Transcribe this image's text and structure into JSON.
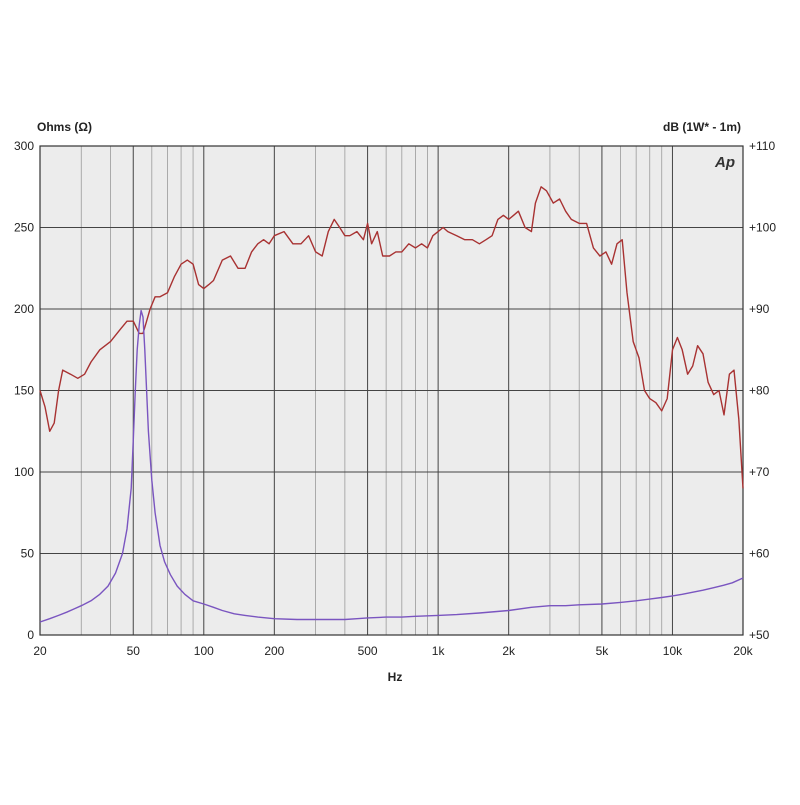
{
  "chart_data": {
    "type": "line",
    "title": "",
    "brand_mark": "Ap",
    "xlabel": "Hz",
    "ylabel_left": "Ohms (Ω)",
    "ylabel_right": "dB (1W* - 1m)",
    "x_scale": "log",
    "xlim": [
      20,
      20000
    ],
    "ylim_left": [
      0,
      300
    ],
    "ylim_right": [
      50,
      110
    ],
    "grid": true,
    "x_ticks": [
      {
        "value": 20,
        "label": "20"
      },
      {
        "value": 50,
        "label": "50"
      },
      {
        "value": 100,
        "label": "100"
      },
      {
        "value": 200,
        "label": "200"
      },
      {
        "value": 500,
        "label": "500"
      },
      {
        "value": 1000,
        "label": "1k"
      },
      {
        "value": 2000,
        "label": "2k"
      },
      {
        "value": 5000,
        "label": "5k"
      },
      {
        "value": 10000,
        "label": "10k"
      },
      {
        "value": 20000,
        "label": "20k"
      }
    ],
    "y_ticks_left": [
      "0",
      "50",
      "100",
      "150",
      "200",
      "250",
      "300"
    ],
    "y_ticks_right": [
      "+50",
      "+60",
      "+70",
      "+80",
      "+90",
      "+100",
      "+110"
    ],
    "colors": {
      "frequency_response": "#a83232",
      "impedance": "#7a55c0",
      "plot_background": "#ececec",
      "grid_major": "#444444",
      "grid_minor": "#9a9a9a"
    },
    "series": [
      {
        "axis": "right",
        "color": "#a83232",
        "x": [
          20,
          21,
          22,
          23,
          24,
          25,
          27,
          29,
          31,
          33,
          36,
          40,
          44,
          47,
          50,
          53,
          55,
          57,
          59,
          62,
          65,
          70,
          75,
          80,
          85,
          90,
          95,
          100,
          105,
          110,
          120,
          130,
          140,
          150,
          160,
          170,
          180,
          190,
          200,
          220,
          240,
          260,
          280,
          300,
          320,
          340,
          360,
          380,
          400,
          420,
          450,
          480,
          500,
          520,
          550,
          580,
          620,
          660,
          700,
          750,
          800,
          850,
          900,
          950,
          1000,
          1050,
          1100,
          1200,
          1300,
          1400,
          1500,
          1600,
          1700,
          1800,
          1900,
          2000,
          2100,
          2200,
          2350,
          2500,
          2600,
          2750,
          2900,
          3100,
          3300,
          3500,
          3700,
          4000,
          4300,
          4600,
          4900,
          5200,
          5500,
          5800,
          6100,
          6400,
          6800,
          7200,
          7600,
          8000,
          8500,
          9000,
          9500,
          10000,
          10500,
          11000,
          11600,
          12200,
          12800,
          13500,
          14200,
          15000,
          15800,
          16600,
          17500,
          18300,
          19200,
          20000
        ],
        "values": [
          80,
          78,
          75,
          76,
          80,
          82.5,
          82,
          81.5,
          82,
          83.5,
          85,
          86,
          87.5,
          88.5,
          88.5,
          87,
          87,
          88.5,
          90,
          91.5,
          91.5,
          92,
          94,
          95.5,
          96,
          95.5,
          93,
          92.5,
          93,
          93.5,
          96,
          96.5,
          95,
          95,
          97,
          98,
          98.5,
          98,
          99,
          99.5,
          98,
          98,
          99,
          97,
          96.5,
          99.5,
          101,
          100,
          99,
          99,
          99.5,
          98.5,
          100.5,
          98,
          99.5,
          96.5,
          96.5,
          97,
          97,
          98,
          97.5,
          98,
          97.5,
          99,
          99.5,
          100,
          99.5,
          99,
          98.5,
          98.5,
          98,
          98.5,
          99,
          101,
          101.5,
          101,
          101.5,
          102,
          100,
          99.5,
          103,
          105,
          104.5,
          103,
          103.5,
          102,
          101,
          100.5,
          100.5,
          97.5,
          96.5,
          97,
          95.5,
          98,
          98.5,
          92,
          86,
          84,
          80,
          79,
          78.5,
          77.5,
          79,
          85,
          86.5,
          85,
          82,
          83,
          85.5,
          84.5,
          81,
          79.5,
          80,
          77,
          82,
          82.5,
          76.5,
          68
        ]
      },
      {
        "axis": "left",
        "color": "#7a55c0",
        "x": [
          20,
          22,
          24,
          26,
          28,
          30,
          33,
          36,
          39,
          42,
          45,
          47,
          49,
          50,
          51,
          52,
          53,
          54,
          55,
          56,
          57,
          58,
          60,
          62,
          65,
          68,
          72,
          77,
          83,
          90,
          100,
          110,
          120,
          135,
          150,
          170,
          200,
          250,
          300,
          350,
          400,
          450,
          500,
          600,
          700,
          800,
          1000,
          1200,
          1500,
          2000,
          2500,
          3000,
          3500,
          4000,
          5000,
          6000,
          7000,
          8000,
          9000,
          10000,
          11000,
          12000,
          13500,
          15000,
          16500,
          18000,
          20000
        ],
        "values": [
          8,
          10,
          12,
          14,
          16,
          18,
          21,
          25,
          30,
          38,
          50,
          65,
          90,
          120,
          150,
          175,
          190,
          199,
          195,
          175,
          150,
          125,
          95,
          75,
          55,
          45,
          37,
          30,
          25,
          21,
          19,
          17,
          15,
          13,
          12,
          11,
          10,
          9.5,
          9.5,
          9.5,
          9.5,
          10,
          10.5,
          11,
          11,
          11.5,
          12,
          12.5,
          13.5,
          15,
          17,
          18,
          18,
          18.5,
          19,
          20,
          21,
          22,
          23,
          24,
          25,
          26,
          27.5,
          29,
          30.5,
          32,
          35
        ]
      }
    ]
  }
}
